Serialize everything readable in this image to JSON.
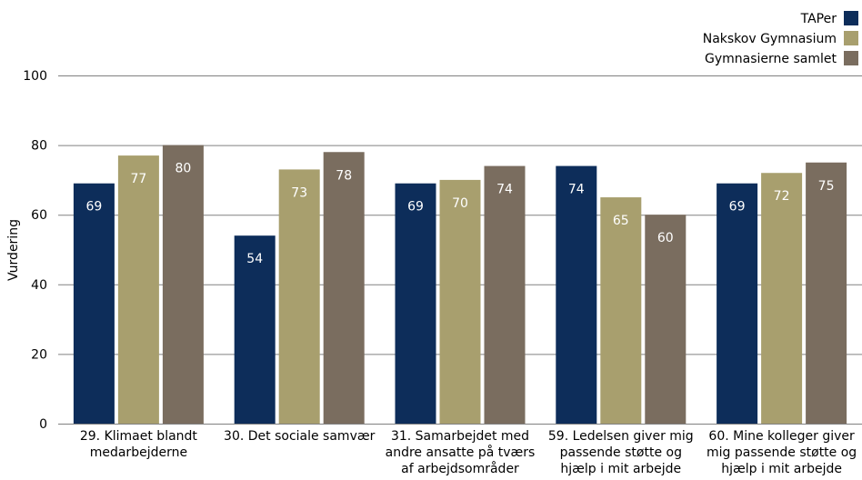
{
  "chart_data": {
    "type": "bar",
    "title": "",
    "xlabel": "",
    "ylabel": "Vurdering",
    "ylim": [
      0,
      100
    ],
    "yticks": [
      0,
      20,
      40,
      60,
      80,
      100
    ],
    "grid": true,
    "legend_position": "top-right",
    "categories": [
      [
        "29. Klimaet blandt",
        "medarbejderne"
      ],
      [
        "30. Det sociale samvær"
      ],
      [
        "31. Samarbejdet med",
        "andre ansatte på tværs",
        "af arbejdsområder"
      ],
      [
        "59. Ledelsen giver mig",
        "passende støtte og",
        "hjælp i mit arbejde"
      ],
      [
        "60. Mine kolleger giver",
        "mig passende støtte og",
        "hjælp i mit arbejde"
      ]
    ],
    "series": [
      {
        "name": "TAPer",
        "color": "#0d2d5a",
        "values": [
          69,
          54,
          69,
          74,
          69
        ]
      },
      {
        "name": "Nakskov Gymnasium",
        "color": "#a89f6e",
        "values": [
          77,
          73,
          70,
          65,
          72
        ]
      },
      {
        "name": "Gymnasierne samlet",
        "color": "#7a6d5f",
        "values": [
          80,
          78,
          74,
          60,
          75
        ]
      }
    ]
  }
}
